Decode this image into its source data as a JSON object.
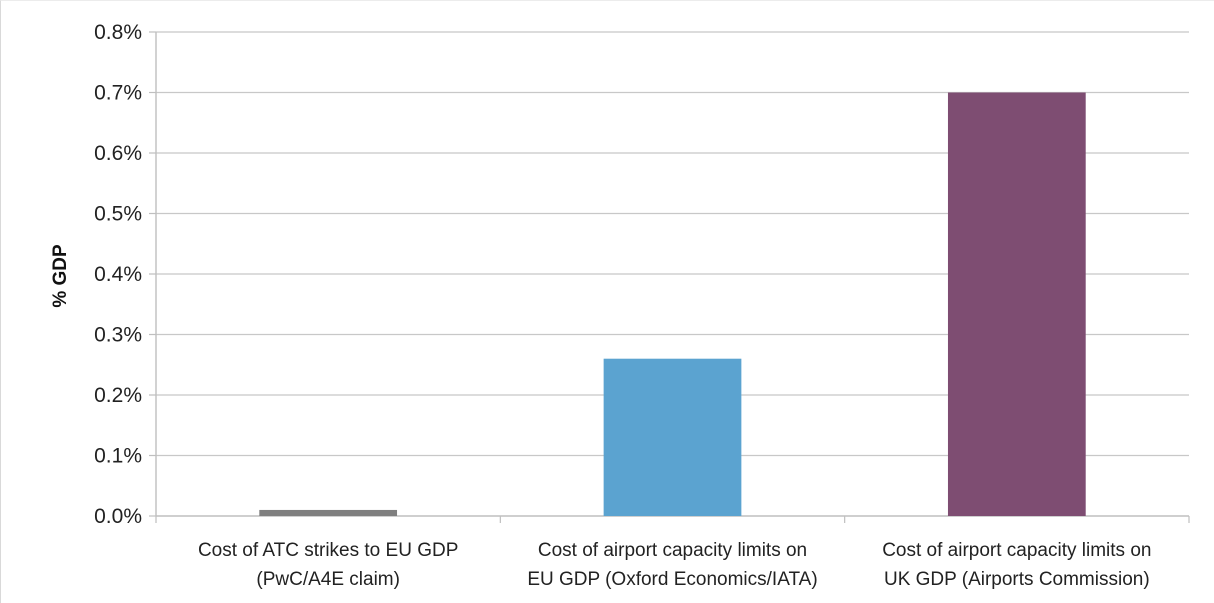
{
  "chart_data": {
    "type": "bar",
    "ylabel": "% GDP",
    "xlabel": "",
    "title": "",
    "ylim": [
      0,
      0.8
    ],
    "yticks": [
      "0.0%",
      "0.1%",
      "0.2%",
      "0.3%",
      "0.4%",
      "0.5%",
      "0.6%",
      "0.7%",
      "0.8%"
    ],
    "grid": true,
    "categories": [
      [
        "Cost of ATC strikes to EU GDP",
        "(PwC/A4E claim)"
      ],
      [
        "Cost of airport capacity limits on",
        "EU GDP (Oxford Economics/IATA)"
      ],
      [
        "Cost of airport capacity limits on",
        "UK GDP (Airports Commission)"
      ]
    ],
    "values": [
      0.01,
      0.26,
      0.7
    ],
    "colors": [
      "#7f7f7f",
      "#5ba3d0",
      "#7e4d72"
    ],
    "grid_color": "#c8c8c8",
    "axis_color": "#bfbfbf"
  }
}
